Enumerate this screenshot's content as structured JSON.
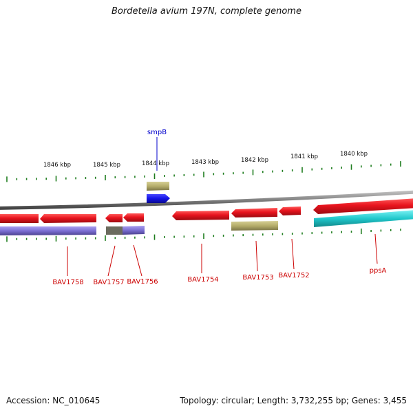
{
  "title": "Bordetella avium 197N, complete genome",
  "footer": {
    "accession": "Accession: NC_010645",
    "topology": "Topology: circular; Length: 3,732,255 bp; Genes: 3,455"
  },
  "colors": {
    "backbone": "#808080",
    "ticks": "#1e7d1e",
    "gene_forward": "#e8141e",
    "gene_label": "#cc0000",
    "rna_label": "#0000cc",
    "rna": "#1414e6",
    "cds_khaki": "#b5ad6a",
    "cds_purple": "#7b6fd2",
    "cds_teal": "#20c8cc"
  },
  "scale_labels": [
    "1846 kbp",
    "1845 kbp",
    "1844 kbp",
    "1843 kbp",
    "1842 kbp",
    "1841 kbp",
    "1840 kbp"
  ],
  "gene_labels": {
    "smpB": "smpB",
    "BAV1758": "BAV1758",
    "BAV1757": "BAV1757",
    "BAV1756": "BAV1756",
    "BAV1754": "BAV1754",
    "BAV1753": "BAV1753",
    "BAV1752": "BAV1752",
    "ppsA": "ppsA"
  }
}
